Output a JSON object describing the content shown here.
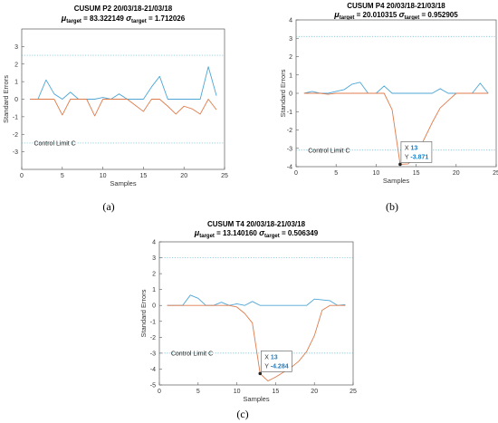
{
  "chart_data": [
    {
      "panel_label": "(a)",
      "type": "line",
      "title_name": "CUSUM P2 20/03/18-21/03/18",
      "title_mu_value": "= 83.322149",
      "title_sigma_value": "= 1.712026",
      "title_target_sub": "target",
      "xlabel": "Samples",
      "ylabel": "Standard Errors",
      "annotation": "Control Limit C",
      "xlim": [
        0,
        25
      ],
      "ylim": [
        -4,
        4
      ],
      "xticks": [
        0,
        5,
        10,
        15,
        20,
        25
      ],
      "yticks": [
        -3,
        -2,
        -1,
        0,
        1,
        2,
        3
      ],
      "control_limits": [
        2.5,
        -2.5
      ],
      "tooltip": null,
      "series": [
        {
          "color": "#4ea6d6",
          "x": [
            1,
            2,
            3,
            4,
            5,
            6,
            7,
            8,
            9,
            10,
            11,
            12,
            13,
            14,
            15,
            16,
            17,
            18,
            19,
            20,
            21,
            22,
            23,
            24
          ],
          "y": [
            0,
            0,
            1.1,
            0.3,
            0,
            0.4,
            0,
            0,
            0,
            0.1,
            0,
            0.3,
            0,
            0,
            0,
            0.7,
            1.3,
            0,
            0,
            0,
            0,
            0,
            1.85,
            0.2
          ]
        },
        {
          "color": "#e07b4c",
          "x": [
            1,
            2,
            3,
            4,
            5,
            6,
            7,
            8,
            9,
            10,
            11,
            12,
            13,
            14,
            15,
            16,
            17,
            18,
            19,
            20,
            21,
            22,
            23,
            24
          ],
          "y": [
            0,
            0,
            0,
            0,
            -0.9,
            0,
            0,
            0,
            -0.95,
            0,
            0,
            0,
            0,
            -0.35,
            -0.7,
            0,
            0,
            -0.4,
            -0.85,
            -0.4,
            -0.55,
            -0.85,
            0,
            -0.6
          ]
        }
      ]
    },
    {
      "panel_label": "(b)",
      "type": "line",
      "title_name": "CUSUM P4 20/03/18-21/03/18",
      "title_mu_value": "= 20.010315",
      "title_sigma_value": "= 0.952905",
      "title_target_sub": "target",
      "xlabel": "Samples",
      "ylabel": "Standard Errors",
      "annotation": "Control Limit C",
      "xlim": [
        0,
        25
      ],
      "ylim": [
        -4,
        4
      ],
      "xticks": [
        0,
        5,
        10,
        15,
        20,
        25
      ],
      "yticks": [
        -4,
        -3,
        -2,
        -1,
        0,
        1,
        2,
        3,
        4
      ],
      "control_limits": [
        3.1,
        -3.1
      ],
      "tooltip": {
        "x_label": "X",
        "x_value": "13",
        "y_label": "Y",
        "y_value": "-3.871",
        "x": 13,
        "y": -3.871
      },
      "series": [
        {
          "color": "#4ea6d6",
          "x": [
            1,
            2,
            3,
            4,
            5,
            6,
            7,
            8,
            9,
            10,
            11,
            12,
            13,
            14,
            15,
            16,
            17,
            18,
            19,
            20,
            21,
            22,
            23,
            24
          ],
          "y": [
            0,
            0.1,
            0,
            0,
            0.1,
            0.2,
            0.5,
            0.6,
            0,
            0,
            0.4,
            0,
            0,
            0,
            0,
            0,
            0,
            0.25,
            0,
            0,
            0,
            0,
            0.55,
            0
          ]
        },
        {
          "color": "#e07b4c",
          "x": [
            1,
            2,
            3,
            4,
            5,
            6,
            7,
            8,
            9,
            10,
            11,
            12,
            13,
            14,
            15,
            16,
            17,
            18,
            19,
            20,
            21,
            22,
            23,
            24
          ],
          "y": [
            0,
            0,
            0,
            -0.05,
            0,
            0,
            0,
            0,
            0,
            0,
            0,
            -0.9,
            -3.871,
            -3.85,
            -3.4,
            -2.5,
            -1.6,
            -0.8,
            -0.4,
            0,
            0,
            0,
            0,
            0
          ]
        }
      ]
    },
    {
      "panel_label": "(c)",
      "type": "line",
      "title_name": "CUSUM T4 20/03/18-21/03/18",
      "title_mu_value": "= 13.140160",
      "title_sigma_value": "= 0.506349",
      "title_target_sub": "target",
      "xlabel": "Samples",
      "ylabel": "Standard Errors",
      "annotation": "Control Limit C",
      "xlim": [
        0,
        25
      ],
      "ylim": [
        -5,
        4
      ],
      "xticks": [
        0,
        5,
        10,
        15,
        20,
        25
      ],
      "yticks": [
        -5,
        -4,
        -3,
        -2,
        -1,
        0,
        1,
        2,
        3,
        4
      ],
      "control_limits": [
        3,
        -3
      ],
      "tooltip": {
        "x_label": "X",
        "x_value": "13",
        "y_label": "Y",
        "y_value": "-4.284",
        "x": 13,
        "y": -4.284
      },
      "series": [
        {
          "color": "#4ea6d6",
          "x": [
            1,
            2,
            3,
            4,
            5,
            6,
            7,
            8,
            9,
            10,
            11,
            12,
            13,
            14,
            15,
            16,
            17,
            18,
            19,
            20,
            21,
            22,
            23,
            24
          ],
          "y": [
            0,
            0,
            0,
            0.65,
            0.45,
            0,
            0,
            0.2,
            0,
            0.1,
            0,
            0.25,
            0,
            0,
            0,
            0,
            0,
            0,
            0,
            0.4,
            0.35,
            0.3,
            0,
            0.05
          ]
        },
        {
          "color": "#e07b4c",
          "x": [
            1,
            2,
            3,
            4,
            5,
            6,
            7,
            8,
            9,
            10,
            11,
            12,
            13,
            14,
            15,
            16,
            17,
            18,
            19,
            20,
            21,
            22,
            23,
            24
          ],
          "y": [
            0,
            0,
            0,
            0,
            0,
            0,
            0,
            0,
            0,
            -0.1,
            -0.5,
            -1.1,
            -4.284,
            -4.75,
            -4.5,
            -4.2,
            -3.9,
            -3.5,
            -2.9,
            -1.9,
            -0.3,
            0,
            0,
            0
          ]
        }
      ]
    }
  ]
}
